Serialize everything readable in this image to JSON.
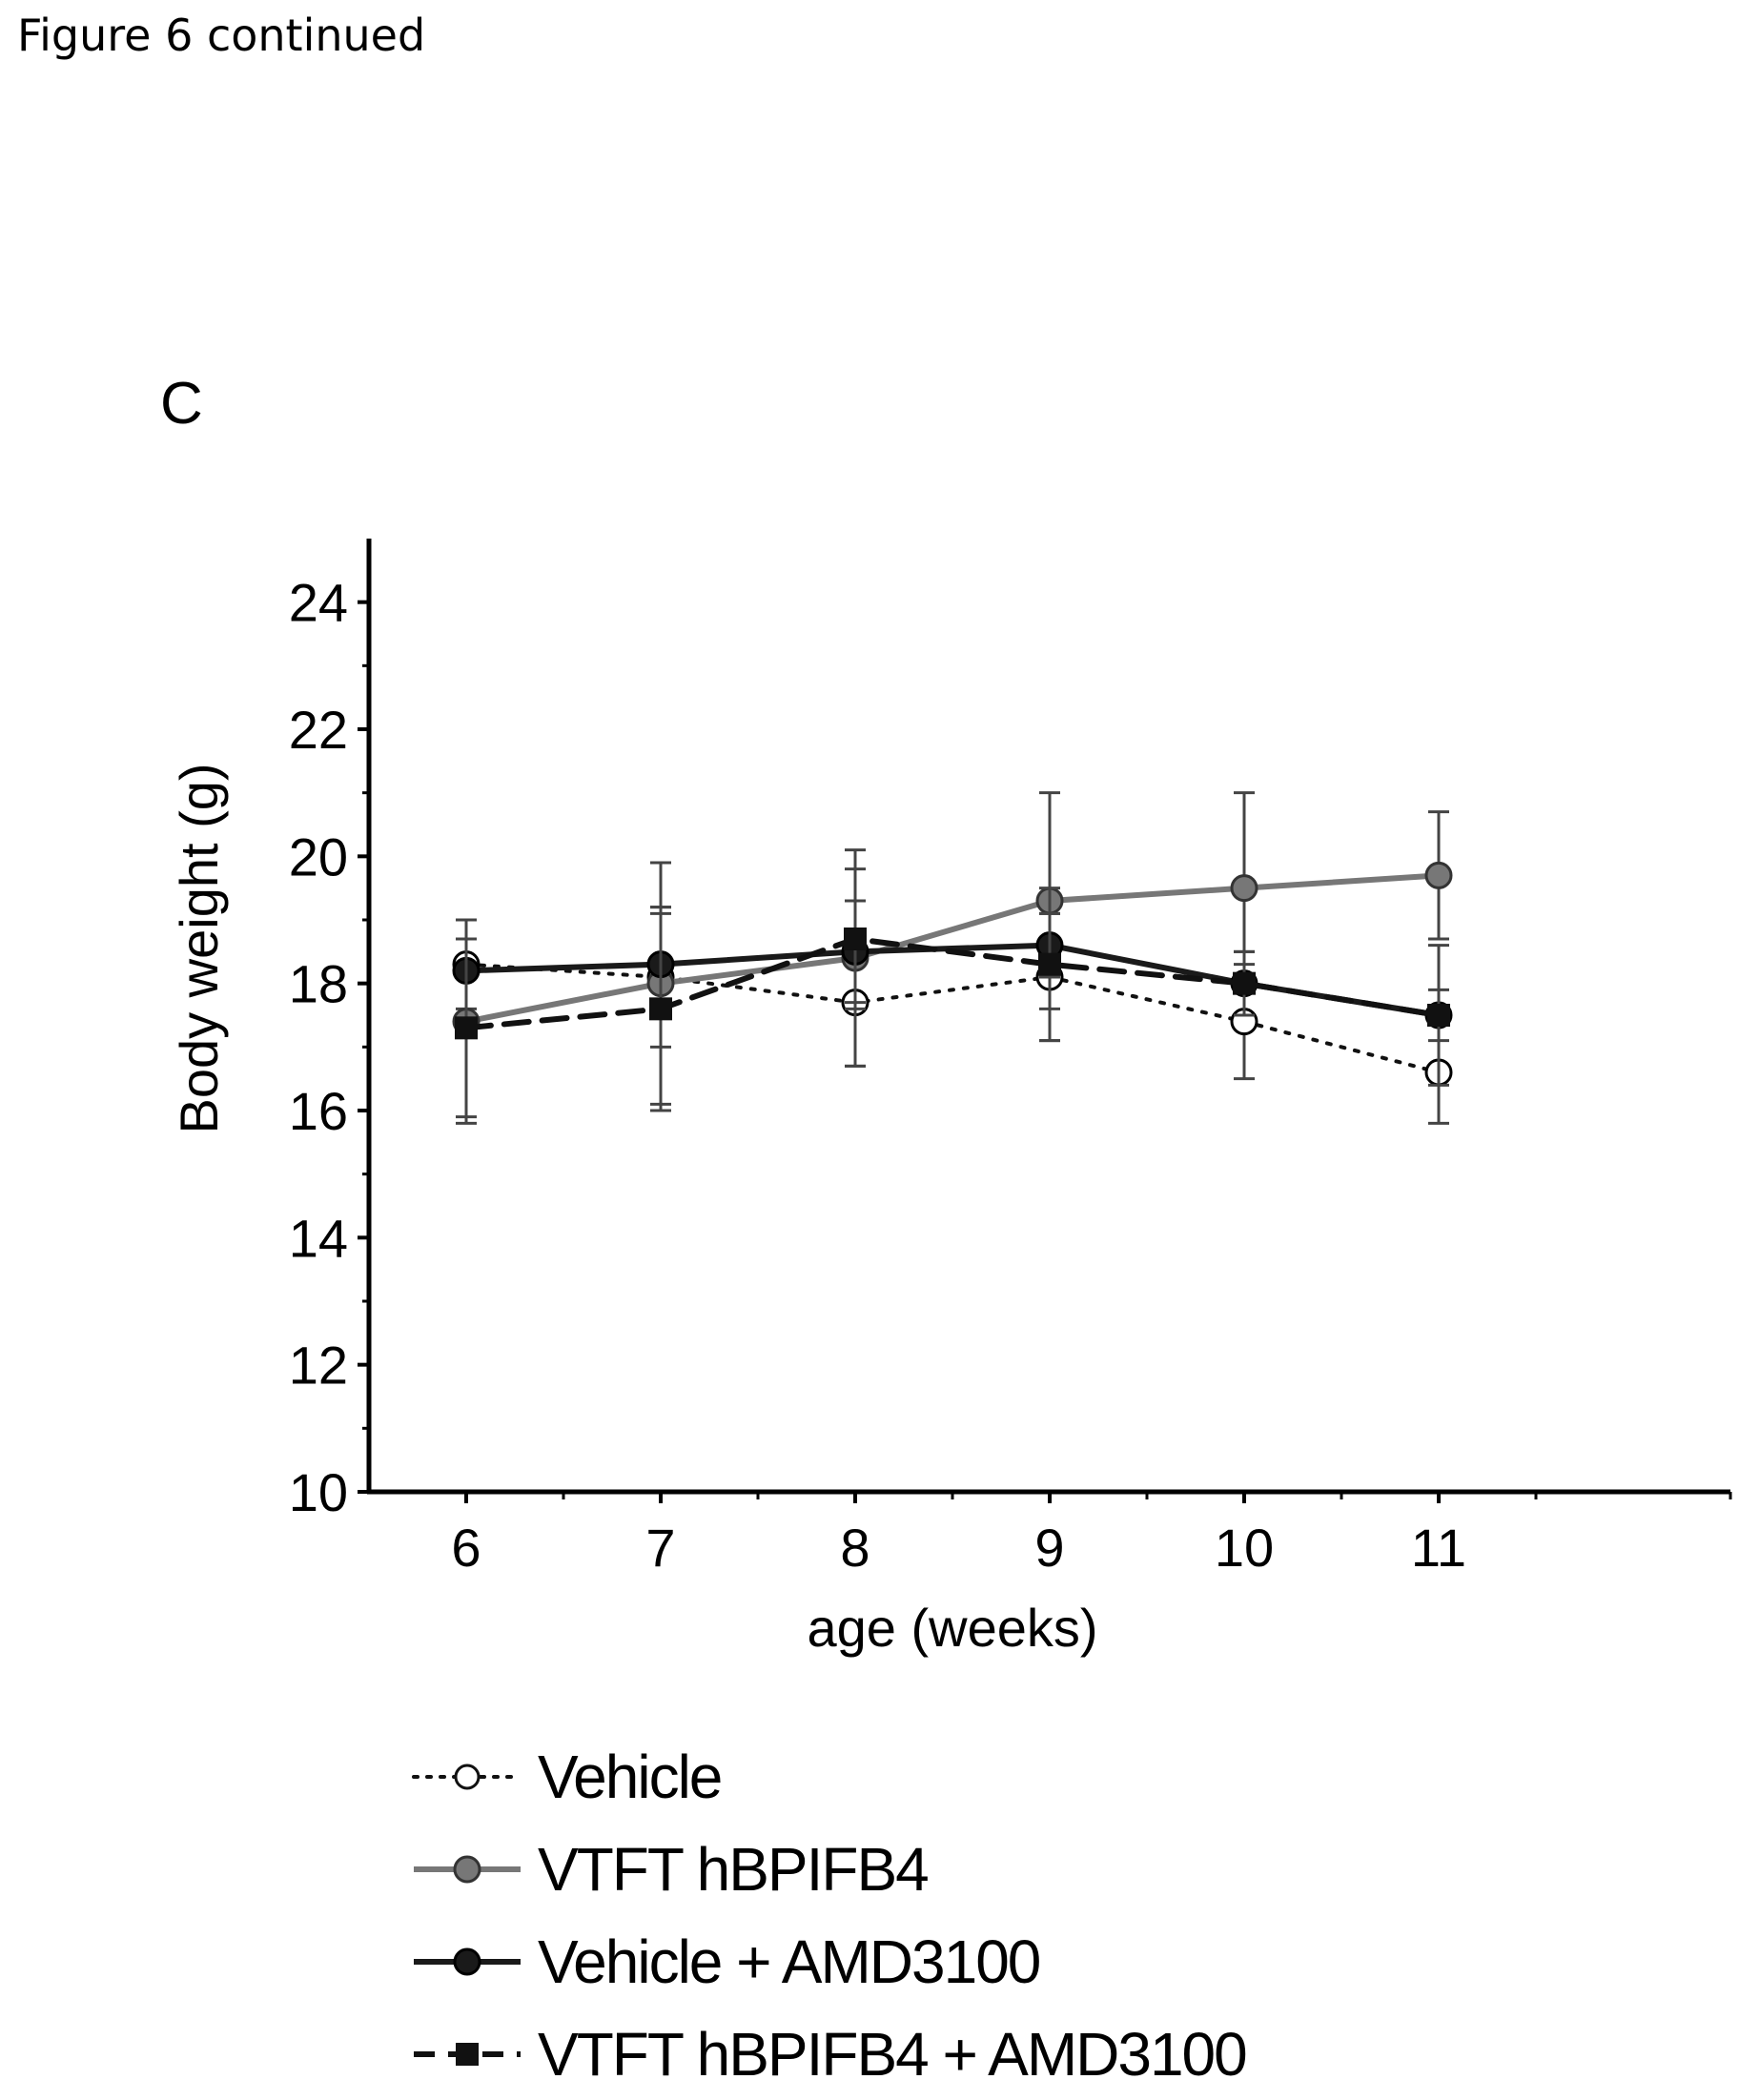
{
  "page": {
    "header": "Figure 6 continued",
    "panel_label": "C"
  },
  "chart_data": {
    "type": "line",
    "title": "",
    "xlabel": "age (weeks)",
    "ylabel": "Body weight (g)",
    "x": [
      6,
      7,
      8,
      9,
      10,
      11
    ],
    "x_tick_labels": [
      "6",
      "7",
      "8",
      "9",
      "10",
      "11"
    ],
    "xlim": [
      5.5,
      12.5
    ],
    "ylim": [
      10,
      25
    ],
    "y_ticks": [
      10,
      12,
      14,
      16,
      18,
      20,
      22,
      24
    ],
    "y_tick_labels": [
      "10",
      "12",
      "14",
      "16",
      "18",
      "20",
      "22",
      "24"
    ],
    "grid": false,
    "legend_position": "bottom",
    "series": [
      {
        "name": "Vehicle",
        "values": [
          18.3,
          18.1,
          17.7,
          18.1,
          17.4,
          16.6
        ],
        "error": [
          0.7,
          1.1,
          1.0,
          1.0,
          0.9,
          0.8
        ],
        "line_style": "dotted",
        "marker": "circle",
        "marker_fill": "#ffffff",
        "color": "#111111"
      },
      {
        "name": "VTFT hBPIFB4",
        "values": [
          17.4,
          18.0,
          18.4,
          19.3,
          19.5,
          19.7
        ],
        "error": [
          1.6,
          1.9,
          1.7,
          1.7,
          1.5,
          1.0
        ],
        "line_style": "solid",
        "marker": "circle",
        "marker_fill": "#777777",
        "color": "#777777"
      },
      {
        "name": "Vehicle + AMD3100",
        "values": [
          18.2,
          18.3,
          18.5,
          18.6,
          18.0,
          17.5
        ],
        "error": [
          0.8,
          0.8,
          0.8,
          0.5,
          0.5,
          0.4
        ],
        "line_style": "solid",
        "marker": "circle",
        "marker_fill": "#1a1a1a",
        "color": "#1a1a1a"
      },
      {
        "name": "VTFT hBPIFB4 + AMD3100",
        "values": [
          17.3,
          17.6,
          18.7,
          18.3,
          18.0,
          17.5
        ],
        "error": [
          1.4,
          1.6,
          1.1,
          1.2,
          0.5,
          1.1
        ],
        "line_style": "dashed",
        "marker": "square",
        "marker_fill": "#111111",
        "color": "#111111"
      }
    ]
  }
}
